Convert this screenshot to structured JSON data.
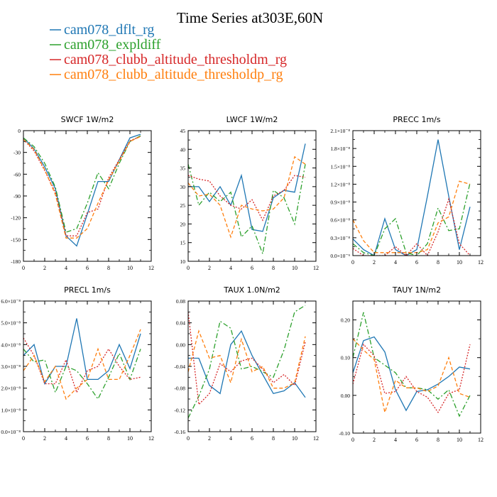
{
  "header": {
    "title": "Time Series at303E,60N"
  },
  "colors": {
    "dflt": "#1f77b4",
    "expldiff": "#2ca02c",
    "altm": "#d62728",
    "altp": "#ff7f0e"
  },
  "chart_data": [
    {
      "type": "line",
      "title": "SWCF   1W/m2",
      "xlim": [
        0,
        12
      ],
      "xticks": [
        0,
        2,
        4,
        6,
        8,
        10,
        12
      ],
      "ylim": [
        -180,
        0
      ],
      "yticks": [
        0,
        -30,
        -60,
        -90,
        -120,
        -150,
        -180
      ],
      "ytick_labels": [
        "0",
        "-30",
        "-60",
        "-90",
        "-120",
        "-150",
        "-180"
      ],
      "series": [
        {
          "name": "cam078_dflt_rg",
          "color": "#1f77b4",
          "dash": "",
          "values": [
            -10,
            -25,
            -50,
            -80,
            -145,
            -159,
            -115,
            -70,
            -70,
            -40,
            -10,
            -5
          ]
        },
        {
          "name": "cam078_expldiff",
          "color": "#2ca02c",
          "dash": "7 3 2 3",
          "values": [
            -10,
            -22,
            -45,
            -78,
            -140,
            -135,
            -100,
            -58,
            -80,
            -45,
            -15,
            -7
          ]
        },
        {
          "name": "cam078_clubb_altitude_thresholdm_rg",
          "color": "#d62728",
          "dash": "2 2",
          "values": [
            -12,
            -28,
            -55,
            -85,
            -145,
            -145,
            -113,
            -108,
            -65,
            -40,
            -14,
            -8
          ]
        },
        {
          "name": "cam078_clubb_altitude_thresholdp_rg",
          "color": "#ff7f0e",
          "dash": "5 3",
          "values": [
            -12,
            -26,
            -54,
            -88,
            -148,
            -148,
            -135,
            -100,
            -68,
            -42,
            -15,
            -8
          ]
        }
      ]
    },
    {
      "type": "line",
      "title": "LWCF   1W/m2",
      "xlim": [
        0,
        12
      ],
      "xticks": [
        0,
        2,
        4,
        6,
        8,
        10,
        12
      ],
      "ylim": [
        10,
        45
      ],
      "yticks": [
        10,
        15,
        20,
        25,
        30,
        35,
        40,
        45
      ],
      "ytick_labels": [
        "10",
        "15",
        "20",
        "25",
        "30",
        "35",
        "40",
        "45"
      ],
      "series": [
        {
          "name": "cam078_dflt_rg",
          "color": "#1f77b4",
          "dash": "",
          "values": [
            30,
            30,
            26,
            30,
            25,
            33,
            18.5,
            18,
            27,
            29,
            28.5,
            41.5
          ]
        },
        {
          "name": "cam078_expldiff",
          "color": "#2ca02c",
          "dash": "7 3 2 3",
          "values": [
            36,
            25,
            28.5,
            26,
            28.5,
            16.5,
            19.5,
            12,
            29,
            27,
            20,
            36
          ]
        },
        {
          "name": "cam078_clubb_altitude_thresholdm_rg",
          "color": "#d62728",
          "dash": "2 2",
          "values": [
            33,
            32,
            31.5,
            27.5,
            25,
            24,
            26.5,
            21,
            27.5,
            29,
            33,
            32.5
          ]
        },
        {
          "name": "cam078_clubb_altitude_thresholdp_rg",
          "color": "#ff7f0e",
          "dash": "5 3",
          "values": [
            31,
            27.5,
            28,
            25,
            16.5,
            25,
            24,
            23.5,
            24,
            27,
            38,
            36
          ]
        }
      ]
    },
    {
      "type": "line",
      "title": "PRECC   1m/s",
      "xlim": [
        0,
        12
      ],
      "xticks": [
        0,
        2,
        4,
        6,
        8,
        10,
        12
      ],
      "ylim": [
        0,
        2.1e-08
      ],
      "yticks": [
        0,
        3e-09,
        6e-09,
        9e-09,
        1.2e-08,
        1.5e-08,
        1.8e-08,
        2.1e-08
      ],
      "ytick_labels": [
        "0.0×10⁻⁹",
        "0.3×10⁻⁸",
        "0.6×10⁻⁸",
        "0.9×10⁻⁸",
        "1.2×10⁻⁸",
        "1.5×10⁻⁸",
        "1.8×10⁻⁸",
        "2.1×10⁻⁸"
      ],
      "series": [
        {
          "name": "cam078_dflt_rg",
          "color": "#1f77b4",
          "dash": "",
          "values": [
            2.8e-09,
            1e-09,
            0,
            6.2e-09,
            1e-09,
            0,
            1e-09,
            1e-08,
            1.95e-08,
            1e-08,
            1e-09,
            8.2e-09
          ]
        },
        {
          "name": "cam078_expldiff",
          "color": "#2ca02c",
          "dash": "7 3 2 3",
          "values": [
            2e-09,
            5e-10,
            0,
            4.5e-09,
            6.2e-09,
            5e-10,
            0,
            2e-09,
            8e-09,
            4.2e-09,
            4.5e-09,
            1.22e-08
          ]
        },
        {
          "name": "cam078_clubb_altitude_thresholdm_rg",
          "color": "#d62728",
          "dash": "2 2",
          "values": [
            1.2e-09,
            0,
            0,
            0,
            1.5e-09,
            0,
            2e-09,
            0,
            4e-09,
            9.5e-09,
            2e-09,
            0
          ]
        },
        {
          "name": "cam078_clubb_altitude_thresholdp_rg",
          "color": "#ff7f0e",
          "dash": "5 3",
          "values": [
            6e-09,
            2.5e-09,
            5e-10,
            5e-10,
            5e-10,
            5e-10,
            5e-10,
            1e-09,
            5.5e-09,
            6.5e-09,
            1.25e-08,
            1.2e-08
          ]
        }
      ]
    },
    {
      "type": "line",
      "title": "PRECL   1m/s",
      "xlim": [
        0,
        12
      ],
      "xticks": [
        0,
        2,
        4,
        6,
        8,
        10,
        12
      ],
      "ylim": [
        0,
        6e-08
      ],
      "yticks": [
        0,
        1e-08,
        2e-08,
        3e-08,
        4e-08,
        5e-08,
        6e-08
      ],
      "ytick_labels": [
        "0.0×10⁻⁸",
        "1.0×10⁻⁸",
        "2.0×10⁻⁸",
        "3.0×10⁻⁸",
        "4.0×10⁻⁸",
        "5.0×10⁻⁸",
        "6.0×10⁻⁸"
      ],
      "series": [
        {
          "name": "cam078_dflt_rg",
          "color": "#1f77b4",
          "dash": "",
          "values": [
            3.5e-08,
            4e-08,
            2.2e-08,
            3e-08,
            3e-08,
            5.2e-08,
            2.4e-08,
            2.4e-08,
            2.8e-08,
            4e-08,
            2.9e-08,
            4.5e-08
          ]
        },
        {
          "name": "cam078_expldiff",
          "color": "#2ca02c",
          "dash": "7 3 2 3",
          "values": [
            3.8e-08,
            3.2e-08,
            3.3e-08,
            1.8e-08,
            3e-08,
            2.8e-08,
            2.2e-08,
            1.5e-08,
            2.5e-08,
            3.6e-08,
            2.4e-08,
            3.8e-08
          ]
        },
        {
          "name": "cam078_clubb_altitude_thresholdm_rg",
          "color": "#d62728",
          "dash": "2 2",
          "values": [
            4.3e-08,
            3.5e-08,
            2.2e-08,
            2.2e-08,
            3.3e-08,
            1.8e-08,
            2.8e-08,
            3e-08,
            3.8e-08,
            3e-08,
            2.4e-08,
            2.5e-08
          ]
        },
        {
          "name": "cam078_clubb_altitude_thresholdp_rg",
          "color": "#ff7f0e",
          "dash": "5 3",
          "values": [
            2.8e-08,
            3.5e-08,
            2.3e-08,
            3e-08,
            1.5e-08,
            2e-08,
            2.4e-08,
            3.8e-08,
            2.4e-08,
            2.4e-08,
            3.5e-08,
            4.7e-08
          ]
        }
      ]
    },
    {
      "type": "line",
      "title": "TAUX   1.0N/m2",
      "xlim": [
        0,
        12
      ],
      "xticks": [
        0,
        2,
        4,
        6,
        8,
        10,
        12
      ],
      "ylim": [
        -0.16,
        0.08
      ],
      "yticks": [
        -0.16,
        -0.12,
        -0.08,
        -0.04,
        0,
        0.04,
        0.08
      ],
      "ytick_labels": [
        "-0.16",
        "-0.12",
        "-0.08",
        "-0.04",
        "0.00",
        "0.04",
        "0.08"
      ],
      "series": [
        {
          "name": "cam078_dflt_rg",
          "color": "#1f77b4",
          "dash": "",
          "values": [
            -0.025,
            -0.025,
            -0.075,
            -0.09,
            0,
            0.025,
            -0.02,
            -0.055,
            -0.09,
            -0.085,
            -0.07,
            -0.097
          ]
        },
        {
          "name": "cam078_expldiff",
          "color": "#2ca02c",
          "dash": "7 3 2 3",
          "values": [
            -0.135,
            -0.095,
            -0.045,
            0.043,
            0.03,
            -0.045,
            -0.04,
            -0.05,
            -0.06,
            -0.01,
            0.06,
            0.072
          ]
        },
        {
          "name": "cam078_clubb_altitude_thresholdm_rg",
          "color": "#d62728",
          "dash": "2 2",
          "values": [
            0.06,
            -0.11,
            -0.09,
            -0.035,
            -0.05,
            -0.03,
            -0.025,
            -0.045,
            -0.07,
            -0.055,
            -0.075,
            0.005
          ]
        },
        {
          "name": "cam078_clubb_altitude_thresholdp_rg",
          "color": "#ff7f0e",
          "dash": "5 3",
          "values": [
            -0.05,
            0.025,
            -0.025,
            -0.02,
            -0.07,
            0.01,
            -0.05,
            -0.04,
            -0.08,
            -0.08,
            -0.07,
            0.015
          ]
        }
      ]
    },
    {
      "type": "line",
      "title": "TAUY   1N/m2",
      "xlim": [
        0,
        12
      ],
      "xticks": [
        0,
        2,
        4,
        6,
        8,
        10,
        12
      ],
      "ylim": [
        -0.1,
        0.25
      ],
      "yticks": [
        -0.1,
        0,
        0.1,
        0.2
      ],
      "ytick_labels": [
        "-0.10",
        "0.00",
        "0.10",
        "0.20"
      ],
      "series": [
        {
          "name": "cam078_dflt_rg",
          "color": "#1f77b4",
          "dash": "",
          "values": [
            0.06,
            0.145,
            0.155,
            0.115,
            0.015,
            -0.04,
            0.01,
            0.015,
            0.03,
            0.05,
            0.075,
            0.07
          ]
        },
        {
          "name": "cam078_expldiff",
          "color": "#2ca02c",
          "dash": "7 3 2 3",
          "values": [
            0.1,
            0.22,
            0.1,
            0.08,
            0.06,
            0.02,
            0.02,
            0.015,
            -0.01,
            0.015,
            -0.055,
            0
          ]
        },
        {
          "name": "cam078_clubb_altitude_thresholdm_rg",
          "color": "#d62728",
          "dash": "2 2",
          "values": [
            0.03,
            0.135,
            0.105,
            0.005,
            0.01,
            0.05,
            0.01,
            -0.005,
            -0.045,
            0.005,
            0.015,
            0.135
          ]
        },
        {
          "name": "cam078_clubb_altitude_thresholdp_rg",
          "color": "#ff7f0e",
          "dash": "5 3",
          "values": [
            0.15,
            0.12,
            0.095,
            -0.045,
            0.04,
            0.02,
            0.02,
            0.01,
            0.025,
            0.1,
            0.005,
            -0.005
          ]
        }
      ]
    }
  ]
}
